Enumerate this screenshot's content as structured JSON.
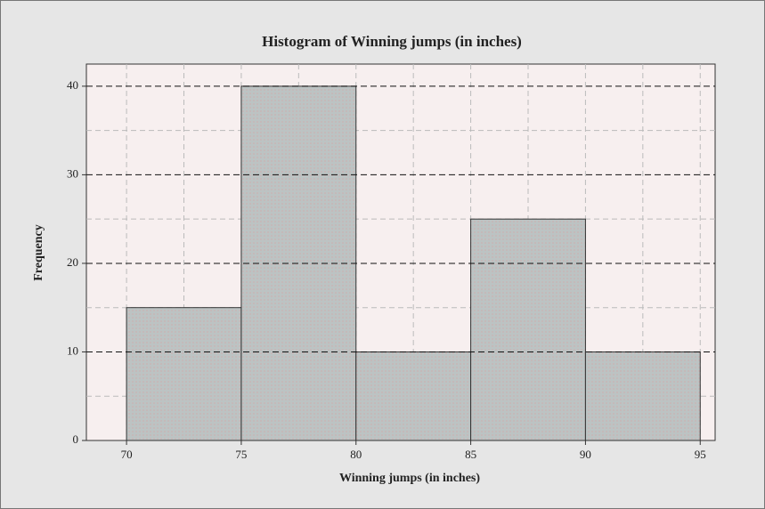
{
  "chart_data": {
    "type": "histogram",
    "title": "Histogram of Winning jumps (in inches)",
    "x_label": "Winning jumps (in inches)",
    "y_label": "Frequency",
    "bins": [
      70,
      75,
      80,
      85,
      90,
      95
    ],
    "values": [
      15,
      40,
      10,
      25,
      10
    ],
    "color": "#bcc3c3",
    "xlim": [
      68.25,
      95.65
    ],
    "ylim": [
      0,
      42.5
    ],
    "xticks": [
      70,
      75,
      80,
      85,
      90,
      95
    ],
    "yticks": [
      0,
      10,
      20,
      30,
      40
    ],
    "x_grid": [
      70,
      72.5,
      75,
      77.5,
      80,
      82.5,
      85,
      87.5,
      90,
      92.5,
      95
    ],
    "y_minor_grid": [
      5,
      15,
      25,
      35
    ],
    "grid": true
  }
}
